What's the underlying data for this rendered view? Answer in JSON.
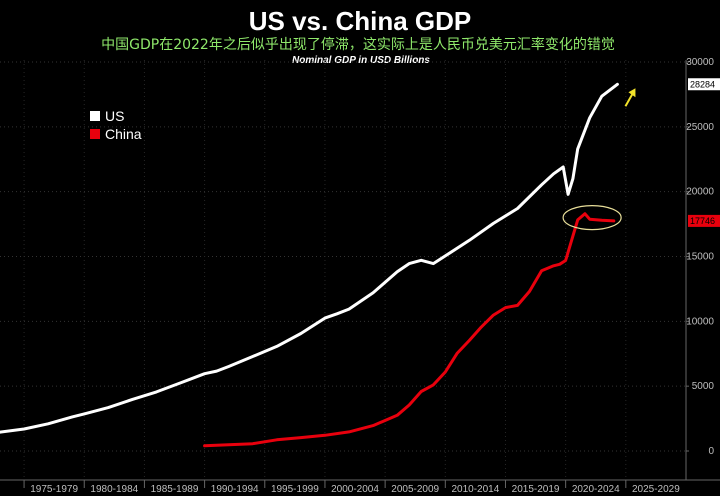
{
  "chart_data": {
    "type": "line",
    "title": "US vs. China GDP",
    "subtitle": "中国GDP在2022年之后似乎出现了停滞，这实际上是人民币兑美元汇率变化的错觉",
    "caption": "Nominal GDP in USD Billions",
    "ylim": [
      0,
      30000
    ],
    "xlim": [
      1973,
      2030
    ],
    "yticks": [
      "0",
      "5000",
      "10000",
      "15000",
      "20000",
      "25000",
      "30000"
    ],
    "ytick_values": [
      0,
      5000,
      10000,
      15000,
      20000,
      25000,
      30000
    ],
    "xticks": [
      "1975-1979",
      "1980-1984",
      "1985-1989",
      "1990-1994",
      "1995-1999",
      "2000-2004",
      "2005-2009",
      "2010-2014",
      "2015-2019",
      "2020-2024",
      "2025-2029"
    ],
    "legend_position": "top-left",
    "series": [
      {
        "name": "US",
        "color": "#ffffff",
        "end_label": "28284",
        "points": [
          [
            1973,
            1450
          ],
          [
            1975,
            1700
          ],
          [
            1977,
            2100
          ],
          [
            1979,
            2630
          ],
          [
            1980,
            2860
          ],
          [
            1982,
            3350
          ],
          [
            1984,
            3980
          ],
          [
            1986,
            4560
          ],
          [
            1988,
            5250
          ],
          [
            1990,
            5960
          ],
          [
            1991,
            6160
          ],
          [
            1992,
            6520
          ],
          [
            1994,
            7290
          ],
          [
            1996,
            8070
          ],
          [
            1998,
            9060
          ],
          [
            2000,
            10250
          ],
          [
            2001,
            10580
          ],
          [
            2002,
            10940
          ],
          [
            2004,
            12210
          ],
          [
            2006,
            13820
          ],
          [
            2007,
            14450
          ],
          [
            2008,
            14710
          ],
          [
            2009,
            14450
          ],
          [
            2010,
            15050
          ],
          [
            2012,
            16250
          ],
          [
            2014,
            17550
          ],
          [
            2016,
            18700
          ],
          [
            2018,
            20530
          ],
          [
            2019,
            21380
          ],
          [
            2019.8,
            21900
          ],
          [
            2020.2,
            19800
          ],
          [
            2020.6,
            21000
          ],
          [
            2021,
            23300
          ],
          [
            2022,
            25700
          ],
          [
            2023,
            27360
          ],
          [
            2024.3,
            28284
          ]
        ]
      },
      {
        "name": "China",
        "color": "#e8000d",
        "end_label": "17746",
        "points": [
          [
            1990,
            400
          ],
          [
            1992,
            480
          ],
          [
            1994,
            560
          ],
          [
            1996,
            860
          ],
          [
            1998,
            1030
          ],
          [
            2000,
            1210
          ],
          [
            2002,
            1470
          ],
          [
            2004,
            1960
          ],
          [
            2006,
            2750
          ],
          [
            2007,
            3550
          ],
          [
            2008,
            4590
          ],
          [
            2009,
            5100
          ],
          [
            2010,
            6090
          ],
          [
            2011,
            7550
          ],
          [
            2012,
            8530
          ],
          [
            2013,
            9570
          ],
          [
            2014,
            10480
          ],
          [
            2015,
            11060
          ],
          [
            2016,
            11230
          ],
          [
            2017,
            12310
          ],
          [
            2018,
            13900
          ],
          [
            2019,
            14280
          ],
          [
            2019.5,
            14400
          ],
          [
            2020,
            14690
          ],
          [
            2021,
            17820
          ],
          [
            2021.6,
            18300
          ],
          [
            2022,
            17880
          ],
          [
            2023,
            17790
          ],
          [
            2024,
            17746
          ]
        ]
      }
    ],
    "annotation": {
      "type": "ellipse",
      "around": "China 2021-2024"
    },
    "arrow_color": "#f2e22a"
  }
}
